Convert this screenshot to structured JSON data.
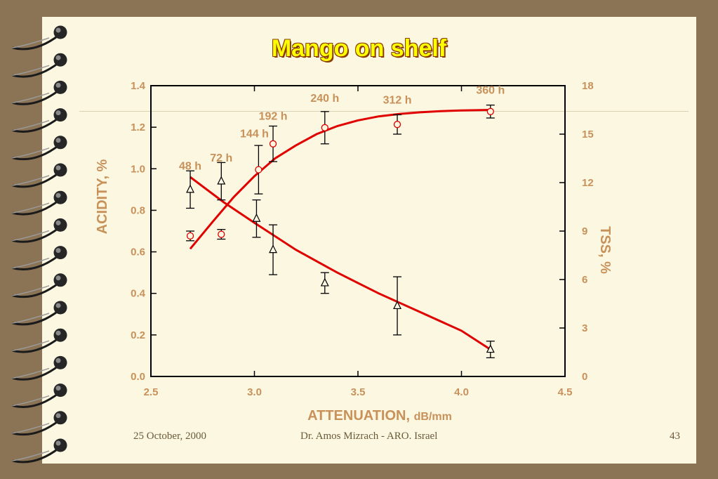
{
  "slide": {
    "title": "Mango on shelf",
    "footer_date": "25 October, 2000",
    "footer_author": "Dr.  Amos Mizrach - ARO. Israel",
    "page_number": "43"
  },
  "colors": {
    "page_background": "#fbf7e1",
    "frame": "#8b7355",
    "title_fill": "#ffff00",
    "axis_text": "#c8915a",
    "fit_curve": "#e00000",
    "tss_marker": "#e00000",
    "acidity_marker": "#000000"
  },
  "chart_data": {
    "type": "scatter",
    "title": "Mango on shelf",
    "xlabel": "ATTENUATION,",
    "xlabel_unit": "dB/mm",
    "ylabel_left": "ACIDITY, %",
    "ylabel_right": "TSS, %",
    "xlim": [
      2.5,
      4.5
    ],
    "ylim_left": [
      0.0,
      1.4
    ],
    "ylim_right": [
      0,
      18
    ],
    "x_ticks": [
      "2.5",
      "3.0",
      "3.5",
      "4.0",
      "4.5"
    ],
    "y_left_ticks": [
      "0.0",
      "0.2",
      "0.4",
      "0.6",
      "0.8",
      "1.0",
      "1.2",
      "1.4"
    ],
    "y_right_ticks": [
      "0",
      "3",
      "6",
      "9",
      "12",
      "15",
      "18"
    ],
    "grid": false,
    "series": [
      {
        "axis": "left",
        "marker": "triangle",
        "points": [
          {
            "x": 2.69,
            "y": 0.9,
            "err": 0.09
          },
          {
            "x": 2.84,
            "y": 0.94,
            "err": 0.09
          },
          {
            "x": 3.01,
            "y": 0.76,
            "err": 0.09
          },
          {
            "x": 3.09,
            "y": 0.61,
            "err": 0.12
          },
          {
            "x": 3.34,
            "y": 0.45,
            "err": 0.05
          },
          {
            "x": 3.69,
            "y": 0.34,
            "err": 0.14
          },
          {
            "x": 4.14,
            "y": 0.13,
            "err": 0.04
          }
        ],
        "fit": [
          [
            2.69,
            0.96
          ],
          [
            2.85,
            0.84
          ],
          [
            3.0,
            0.74
          ],
          [
            3.2,
            0.61
          ],
          [
            3.4,
            0.5
          ],
          [
            3.6,
            0.4
          ],
          [
            3.8,
            0.31
          ],
          [
            4.0,
            0.22
          ],
          [
            4.14,
            0.13
          ]
        ]
      },
      {
        "axis": "right",
        "marker": "circle",
        "points": [
          {
            "x": 2.69,
            "y": 8.7,
            "err": 0.3
          },
          {
            "x": 2.84,
            "y": 8.8,
            "err": 0.3
          },
          {
            "x": 3.02,
            "y": 12.8,
            "err": 1.5
          },
          {
            "x": 3.09,
            "y": 14.4,
            "err": 1.1
          },
          {
            "x": 3.34,
            "y": 15.4,
            "err": 1.0
          },
          {
            "x": 3.69,
            "y": 15.6,
            "err": 0.6
          },
          {
            "x": 4.14,
            "y": 16.4,
            "err": 0.4
          }
        ],
        "fit": [
          [
            2.69,
            7.9
          ],
          [
            2.8,
            9.6
          ],
          [
            2.9,
            11.1
          ],
          [
            3.0,
            12.4
          ],
          [
            3.1,
            13.5
          ],
          [
            3.2,
            14.3
          ],
          [
            3.3,
            15.0
          ],
          [
            3.4,
            15.5
          ],
          [
            3.5,
            15.85
          ],
          [
            3.6,
            16.1
          ],
          [
            3.7,
            16.25
          ],
          [
            3.8,
            16.35
          ],
          [
            3.9,
            16.42
          ],
          [
            4.0,
            16.47
          ],
          [
            4.14,
            16.5
          ]
        ]
      }
    ],
    "annotations": [
      {
        "text": "48 h",
        "x": 2.69,
        "y": 12.8
      },
      {
        "text": "72 h",
        "x": 2.84,
        "y": 13.3
      },
      {
        "text": "144 h",
        "x": 3.0,
        "y": 14.8
      },
      {
        "text": "192 h",
        "x": 3.09,
        "y": 15.9
      },
      {
        "text": "240 h",
        "x": 3.34,
        "y": 17.0
      },
      {
        "text": "312 h",
        "x": 3.69,
        "y": 16.9
      },
      {
        "text": "360 h",
        "x": 4.14,
        "y": 17.5
      }
    ]
  }
}
